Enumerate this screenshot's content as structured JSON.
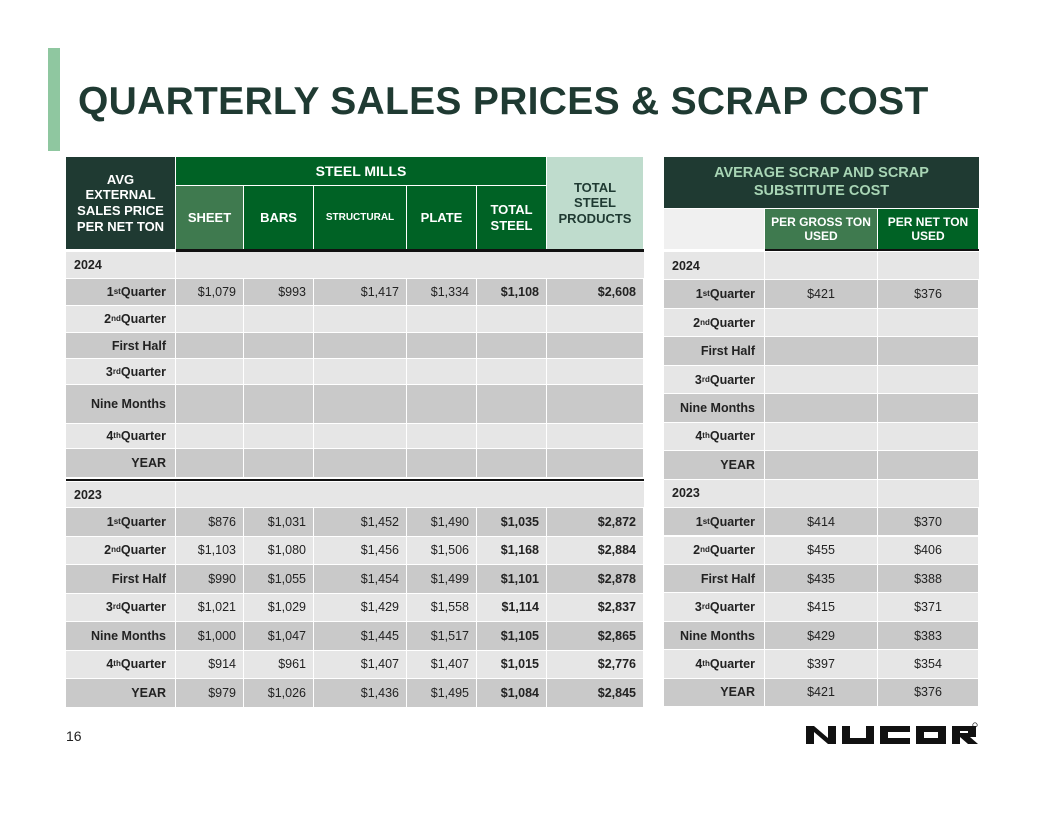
{
  "title": "QUARTERLY SALES PRICES & SCRAP COST",
  "page_number": "16",
  "logo_text": "NUCOR",
  "colors": {
    "title": "#1f3a32",
    "header_dark": "#1f3a32",
    "header_green": "#006225",
    "header_sheet": "#3f7a4f",
    "total_products_bg": "#bfdccd",
    "accent_bar": "#8fc7a0",
    "row_dark": "#c9c9c9",
    "row_light": "#e6e6e6"
  },
  "sales": {
    "corner_header": "AVG EXTERNAL SALES PRICE PER NET TON",
    "group_header": "STEEL MILLS",
    "columns": [
      "SHEET",
      "BARS",
      "STRUCTURAL",
      "PLATE",
      "TOTAL STEEL",
      "TOTAL STEEL PRODUCTS"
    ],
    "sections": [
      {
        "year": "2024",
        "rows": [
          {
            "label": {
              "ord": "1",
              "sup": "st",
              "text": " Quarter"
            },
            "values": [
              "$1,079",
              "$993",
              "$1,417",
              "$1,334",
              "$1,108",
              "$2,608"
            ]
          },
          {
            "label": {
              "ord": "2",
              "sup": "nd",
              "text": " Quarter"
            },
            "values": [
              "",
              "",
              "",
              "",
              "",
              ""
            ]
          },
          {
            "label": {
              "ord": "",
              "sup": "",
              "text": "First Half"
            },
            "values": [
              "",
              "",
              "",
              "",
              "",
              ""
            ]
          },
          {
            "label": {
              "ord": "3",
              "sup": "rd",
              "text": " Quarter"
            },
            "values": [
              "",
              "",
              "",
              "",
              "",
              ""
            ]
          },
          {
            "label": {
              "ord": "",
              "sup": "",
              "text": "Nine Months"
            },
            "values": [
              "",
              "",
              "",
              "",
              "",
              ""
            ]
          },
          {
            "label": {
              "ord": "4",
              "sup": "th",
              "text": " Quarter"
            },
            "values": [
              "",
              "",
              "",
              "",
              "",
              ""
            ]
          },
          {
            "label": {
              "ord": "",
              "sup": "",
              "text": "YEAR"
            },
            "values": [
              "",
              "",
              "",
              "",
              "",
              ""
            ]
          }
        ]
      },
      {
        "year": "2023",
        "rows": [
          {
            "label": {
              "ord": "1",
              "sup": "st",
              "text": " Quarter"
            },
            "values": [
              "$876",
              "$1,031",
              "$1,452",
              "$1,490",
              "$1,035",
              "$2,872"
            ]
          },
          {
            "label": {
              "ord": "2",
              "sup": "nd",
              "text": " Quarter"
            },
            "values": [
              "$1,103",
              "$1,080",
              "$1,456",
              "$1,506",
              "$1,168",
              "$2,884"
            ]
          },
          {
            "label": {
              "ord": "",
              "sup": "",
              "text": "First Half"
            },
            "values": [
              "$990",
              "$1,055",
              "$1,454",
              "$1,499",
              "$1,101",
              "$2,878"
            ]
          },
          {
            "label": {
              "ord": "3",
              "sup": "rd",
              "text": " Quarter"
            },
            "values": [
              "$1,021",
              "$1,029",
              "$1,429",
              "$1,558",
              "$1,114",
              "$2,837"
            ]
          },
          {
            "label": {
              "ord": "",
              "sup": "",
              "text": "Nine Months"
            },
            "values": [
              "$1,000",
              "$1,047",
              "$1,445",
              "$1,517",
              "$1,105",
              "$2,865"
            ]
          },
          {
            "label": {
              "ord": "4",
              "sup": "th",
              "text": " Quarter"
            },
            "values": [
              "$914",
              "$961",
              "$1,407",
              "$1,407",
              "$1,015",
              "$2,776"
            ]
          },
          {
            "label": {
              "ord": "",
              "sup": "",
              "text": "YEAR"
            },
            "values": [
              "$979",
              "$1,026",
              "$1,436",
              "$1,495",
              "$1,084",
              "$2,845"
            ]
          }
        ]
      }
    ]
  },
  "scrap": {
    "header": "AVERAGE SCRAP AND SCRAP SUBSTITUTE COST",
    "columns": [
      "PER GROSS TON USED",
      "PER NET TON USED"
    ],
    "sections": [
      {
        "year": "2024",
        "rows": [
          {
            "label": {
              "ord": "1",
              "sup": "st",
              "text": " Quarter"
            },
            "values": [
              "$421",
              "$376"
            ]
          },
          {
            "label": {
              "ord": "2",
              "sup": "nd",
              "text": " Quarter"
            },
            "values": [
              "",
              ""
            ]
          },
          {
            "label": {
              "ord": "",
              "sup": "",
              "text": "First Half"
            },
            "values": [
              "",
              ""
            ]
          },
          {
            "label": {
              "ord": "3",
              "sup": "rd",
              "text": " Quarter"
            },
            "values": [
              "",
              ""
            ]
          },
          {
            "label": {
              "ord": "",
              "sup": "",
              "text": "Nine Months"
            },
            "values": [
              "",
              ""
            ]
          },
          {
            "label": {
              "ord": "4",
              "sup": "th",
              "text": " Quarter"
            },
            "values": [
              "",
              ""
            ]
          },
          {
            "label": {
              "ord": "",
              "sup": "",
              "text": "YEAR"
            },
            "values": [
              "",
              ""
            ]
          }
        ]
      },
      {
        "year": "2023",
        "rows": [
          {
            "label": {
              "ord": "1",
              "sup": "st",
              "text": " Quarter"
            },
            "values": [
              "$414",
              "$370"
            ]
          },
          {
            "label": {
              "ord": "2",
              "sup": "nd",
              "text": " Quarter"
            },
            "values": [
              "$455",
              "$406"
            ]
          },
          {
            "label": {
              "ord": "",
              "sup": "",
              "text": "First Half"
            },
            "values": [
              "$435",
              "$388"
            ]
          },
          {
            "label": {
              "ord": "3",
              "sup": "rd",
              "text": " Quarter"
            },
            "values": [
              "$415",
              "$371"
            ]
          },
          {
            "label": {
              "ord": "",
              "sup": "",
              "text": "Nine Months"
            },
            "values": [
              "$429",
              "$383"
            ]
          },
          {
            "label": {
              "ord": "4",
              "sup": "th",
              "text": " Quarter"
            },
            "values": [
              "$397",
              "$354"
            ]
          },
          {
            "label": {
              "ord": "",
              "sup": "",
              "text": "YEAR"
            },
            "values": [
              "$421",
              "$376"
            ]
          }
        ]
      }
    ]
  }
}
